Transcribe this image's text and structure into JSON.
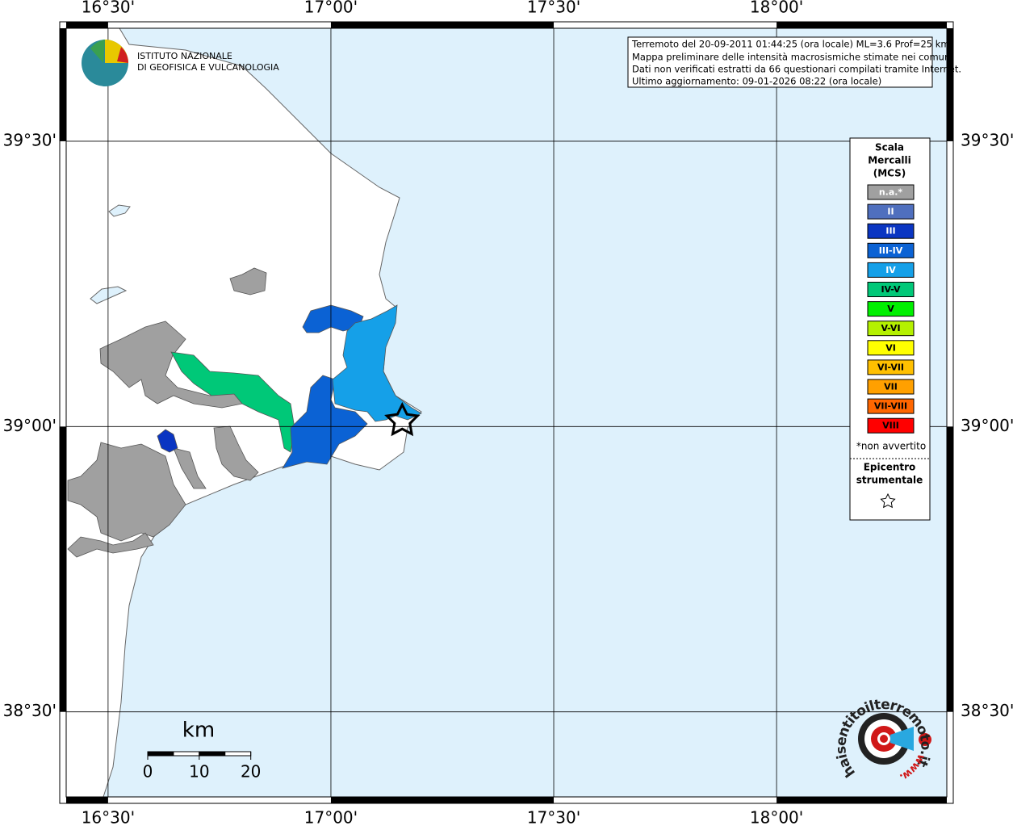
{
  "logo": {
    "line1": "ISTITUTO NAZIONALE",
    "line2": "DI GEOFISICA E VULCANOLOGIA"
  },
  "info": [
    "Terremoto del 20-09-2011 01:44:25 (ora locale) ML=3.6 Prof=25 km",
    "Mappa preliminare delle intensità macrosismiche stimate nei comuni",
    "Dati non verificati estratti da 66 questionari compilati tramite Internet.",
    "Ultimo aggiornamento: 09-01-2026 08:22 (ora locale)"
  ],
  "map": {
    "lon_range": [
      16.406,
      18.382
    ],
    "lat_range": [
      38.351,
      39.698
    ],
    "lon_ticks": [
      {
        "value": 16.5,
        "label": "16°30'"
      },
      {
        "value": 17,
        "label": "17°00'"
      },
      {
        "value": 17.5,
        "label": "17°30'"
      },
      {
        "value": 18,
        "label": "18°00'"
      }
    ],
    "lat_ticks": [
      {
        "value": 39.5,
        "label": "39°30'"
      },
      {
        "value": 39,
        "label": "39°00'"
      },
      {
        "value": 38.5,
        "label": "38°30'"
      }
    ],
    "epicenter": {
      "lon": 17.16,
      "lat": 39.01
    }
  },
  "legend": {
    "title": [
      "Scala",
      "Mercalli",
      "(MCS)"
    ],
    "items": [
      {
        "label": "n.a.*",
        "color": "#a0a0a0"
      },
      {
        "label": "II",
        "color": "#4f6fbe"
      },
      {
        "label": "III",
        "color": "#0a35c2"
      },
      {
        "label": "III-IV",
        "color": "#0b62d4"
      },
      {
        "label": "IV",
        "color": "#15a0e8"
      },
      {
        "label": "IV-V",
        "color": "#00c878"
      },
      {
        "label": "V",
        "color": "#00f000"
      },
      {
        "label": "V-VI",
        "color": "#b4f000"
      },
      {
        "label": "VI",
        "color": "#ffff00"
      },
      {
        "label": "VI-VII",
        "color": "#ffc000"
      },
      {
        "label": "VII",
        "color": "#ffa000"
      },
      {
        "label": "VII-VIII",
        "color": "#ff6600"
      },
      {
        "label": "VIII",
        "color": "#ff0000"
      }
    ],
    "note": "*non avvertito",
    "epicenter_title": [
      "Epicentro",
      "strumentale"
    ]
  },
  "scale": {
    "unit": "km",
    "ticks": [
      0,
      10,
      20
    ]
  },
  "badge": {
    "text": "haisentitoilterremoto.it",
    "www": "www."
  }
}
